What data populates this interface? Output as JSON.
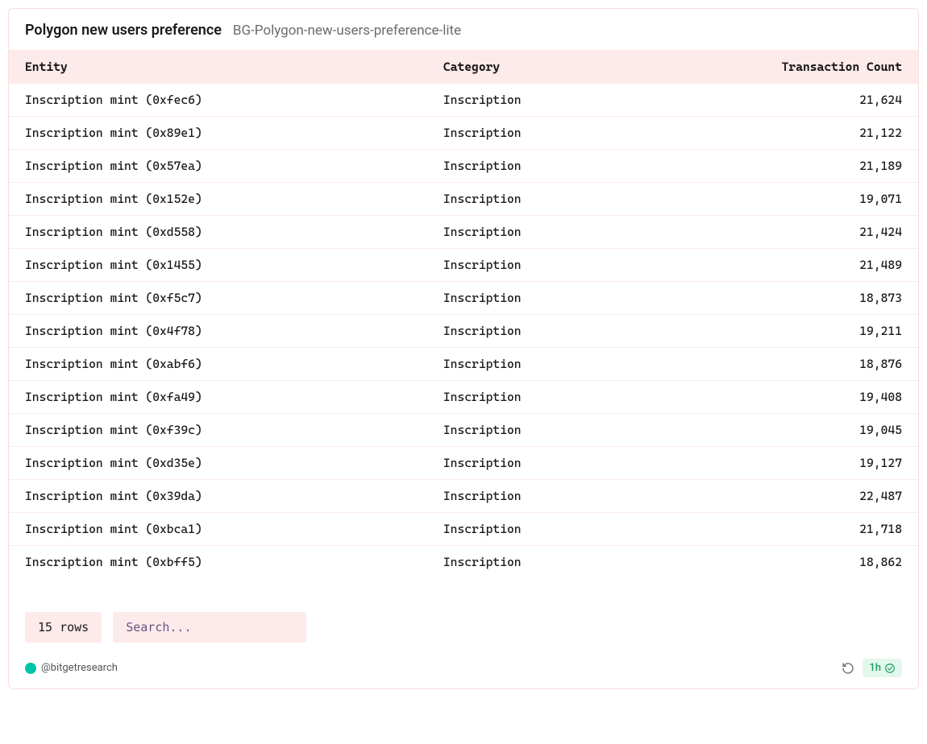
{
  "card": {
    "title": "Polygon new users preference",
    "subtitle": "BG-Polygon-new-users-preference-lite"
  },
  "table": {
    "type": "table",
    "header_bg": "#fdeaea",
    "row_border_color": "#fdeaea",
    "font_family": "monospace",
    "font_size": 15,
    "columns": [
      {
        "key": "entity",
        "label": "Entity",
        "align": "left"
      },
      {
        "key": "category",
        "label": "Category",
        "align": "left"
      },
      {
        "key": "count",
        "label": "Transaction Count",
        "align": "right"
      }
    ],
    "rows": [
      {
        "entity": "Inscription mint (0xfec6)",
        "category": "Inscription",
        "count": "21,624"
      },
      {
        "entity": "Inscription mint (0x89e1)",
        "category": "Inscription",
        "count": "21,122"
      },
      {
        "entity": "Inscription mint (0x57ea)",
        "category": "Inscription",
        "count": "21,189"
      },
      {
        "entity": "Inscription mint (0x152e)",
        "category": "Inscription",
        "count": "19,071"
      },
      {
        "entity": "Inscription mint (0xd558)",
        "category": "Inscription",
        "count": "21,424"
      },
      {
        "entity": "Inscription mint (0x1455)",
        "category": "Inscription",
        "count": "21,489"
      },
      {
        "entity": "Inscription mint (0xf5c7)",
        "category": "Inscription",
        "count": "18,873"
      },
      {
        "entity": "Inscription mint (0x4f78)",
        "category": "Inscription",
        "count": "19,211"
      },
      {
        "entity": "Inscription mint (0xabf6)",
        "category": "Inscription",
        "count": "18,876"
      },
      {
        "entity": "Inscription mint (0xfa49)",
        "category": "Inscription",
        "count": "19,408"
      },
      {
        "entity": "Inscription mint (0xf39c)",
        "category": "Inscription",
        "count": "19,045"
      },
      {
        "entity": "Inscription mint (0xd35e)",
        "category": "Inscription",
        "count": "19,127"
      },
      {
        "entity": "Inscription mint (0x39da)",
        "category": "Inscription",
        "count": "22,487"
      },
      {
        "entity": "Inscription mint (0xbca1)",
        "category": "Inscription",
        "count": "21,718"
      },
      {
        "entity": "Inscription mint (0xbff5)",
        "category": "Inscription",
        "count": "18,862"
      }
    ]
  },
  "footer": {
    "rows_label": "15 rows",
    "search_placeholder": "Search...",
    "author_handle": "@bitgetresearch",
    "author_avatar_color": "#00c4a7",
    "time_badge": "1h",
    "time_badge_bg": "#e3f7ed",
    "time_badge_color": "#1a9e63"
  },
  "colors": {
    "card_border": "#fcdede",
    "background": "#ffffff",
    "text_primary": "#1a1a1a",
    "text_muted": "#6b6b6b"
  }
}
